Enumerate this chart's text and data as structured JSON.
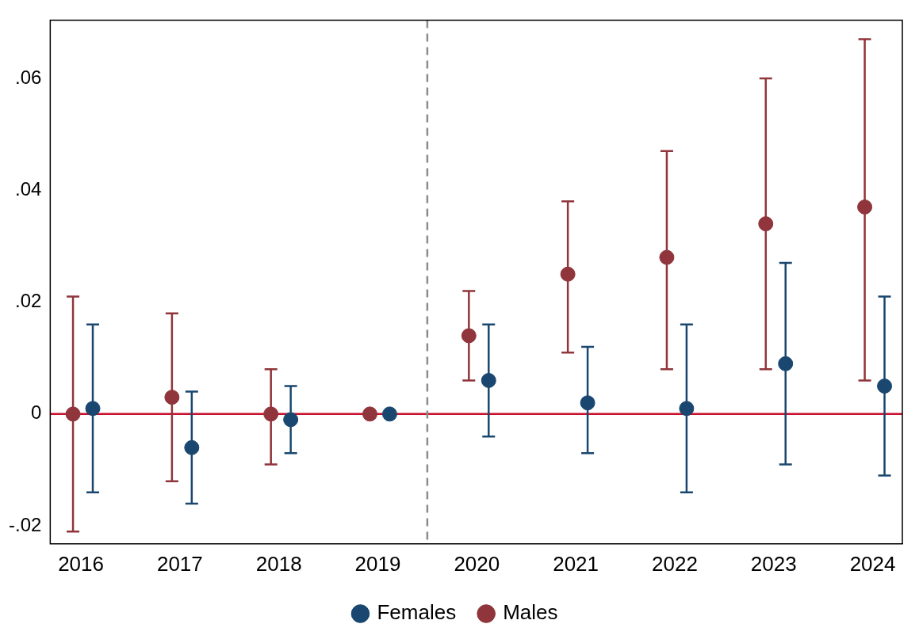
{
  "chart_data": {
    "type": "scatter",
    "xlim": [
      2015.69,
      2024.3
    ],
    "xticks": [
      2016,
      2017,
      2018,
      2019,
      2020,
      2021,
      2022,
      2023,
      2024
    ],
    "ylim": [
      -0.0232,
      0.0704
    ],
    "yticks": [
      {
        "value": -0.02,
        "label": "-.02"
      },
      {
        "value": 0,
        "label": "0"
      },
      {
        "value": 0.02,
        "label": ".02"
      },
      {
        "value": 0.04,
        "label": ".04"
      },
      {
        "value": 0.06,
        "label": ".06"
      }
    ],
    "grid": false,
    "legend": "bottom",
    "marker": "circle",
    "series": [
      {
        "name": "Females",
        "color": "#1a476f",
        "x": [
          2016.12,
          2017.12,
          2018.12,
          2019.12,
          2020.12,
          2021.12,
          2022.12,
          2023.12,
          2024.12
        ],
        "values": [
          0.001,
          -0.006,
          -0.001,
          0,
          0.006,
          0.002,
          0.001,
          0.009,
          0.005
        ],
        "errors": [
          [
            -0.014,
            0.016
          ],
          [
            -0.016,
            0.004
          ],
          [
            -0.007,
            0.005
          ],
          null,
          [
            -0.004,
            0.016
          ],
          [
            -0.007,
            0.012
          ],
          [
            -0.014,
            0.016
          ],
          [
            -0.009,
            0.027
          ],
          [
            -0.011,
            0.021
          ]
        ]
      },
      {
        "name": "Males",
        "color": "#90353b",
        "x": [
          2015.92,
          2016.92,
          2017.92,
          2018.92,
          2019.92,
          2020.92,
          2021.92,
          2022.92,
          2023.92
        ],
        "values": [
          0,
          0.003,
          0,
          0,
          0.014,
          0.025,
          0.028,
          0.034,
          0.037
        ],
        "errors": [
          [
            -0.021,
            0.021
          ],
          [
            -0.012,
            0.018
          ],
          [
            -0.009,
            0.008
          ],
          null,
          [
            0.006,
            0.022
          ],
          [
            0.011,
            0.038
          ],
          [
            0.008,
            0.047
          ],
          [
            0.008,
            0.06
          ],
          [
            0.006,
            0.067
          ]
        ]
      }
    ],
    "ref_lines": [
      {
        "axis": "y",
        "value": 0,
        "color": "#c8102e",
        "line_style": "solid"
      },
      {
        "axis": "x",
        "value": 2019.5,
        "color": "#8c8c8c",
        "line_style": "dashed"
      }
    ]
  }
}
